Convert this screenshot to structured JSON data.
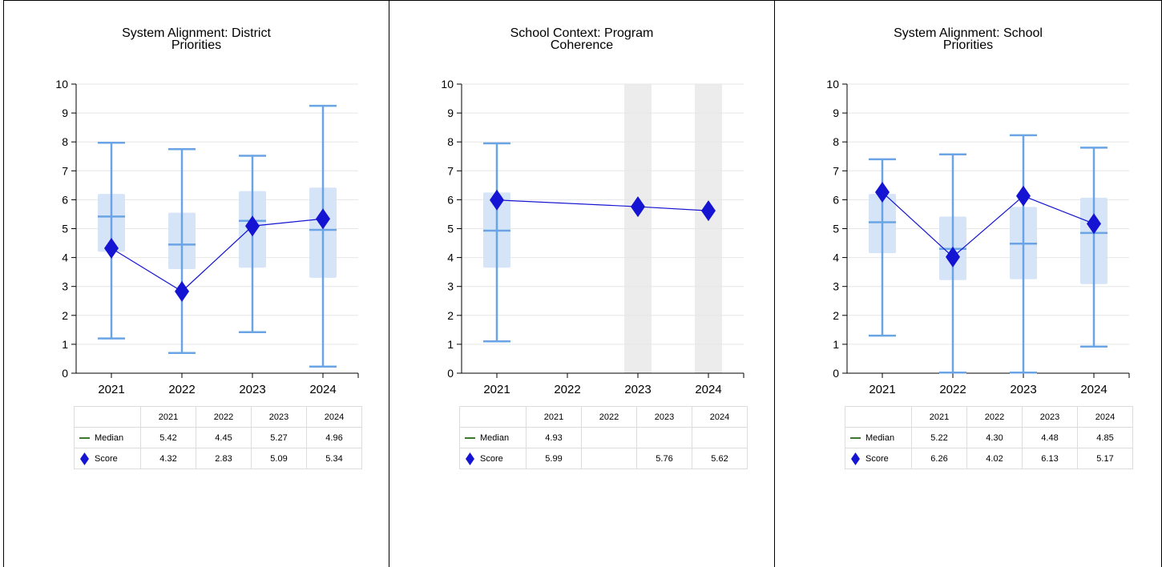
{
  "colors": {
    "box_fill": "#d6e4f8",
    "whisker": "#6aa4e4",
    "score": "#1414d2",
    "median_legend": "#3a7a2a",
    "highlight": "#ececec",
    "grid": "#e6e6e6"
  },
  "legend": {
    "median_label": "Median",
    "score_label": "Score"
  },
  "chart_data": [
    {
      "type": "box",
      "title_lines": [
        "System Alignment: District",
        "Priorities"
      ],
      "categories": [
        "2021",
        "2022",
        "2023",
        "2024"
      ],
      "ylim": [
        0,
        10
      ],
      "yticks": [
        "0",
        "1",
        "2",
        "3",
        "4",
        "5",
        "6",
        "7",
        "8",
        "9",
        "10"
      ],
      "highlight": [
        false,
        false,
        false,
        false
      ],
      "boxes": [
        {
          "min": 1.2,
          "q1": 4.2,
          "median": 5.42,
          "q3": 6.2,
          "max": 7.97
        },
        {
          "min": 0.7,
          "q1": 3.6,
          "median": 4.45,
          "q3": 5.55,
          "max": 7.75
        },
        {
          "min": 1.42,
          "q1": 3.65,
          "median": 5.27,
          "q3": 6.3,
          "max": 7.52
        },
        {
          "min": 0.23,
          "q1": 3.3,
          "median": 4.96,
          "q3": 6.42,
          "max": 9.25
        }
      ],
      "scores": [
        4.32,
        2.83,
        5.09,
        5.34
      ],
      "table": {
        "headers": [
          "2021",
          "2022",
          "2023",
          "2024"
        ],
        "median": [
          "5.42",
          "4.45",
          "5.27",
          "4.96"
        ],
        "score": [
          "4.32",
          "2.83",
          "5.09",
          "5.34"
        ]
      }
    },
    {
      "type": "box",
      "title_lines": [
        "School Context: Program",
        "Coherence"
      ],
      "categories": [
        "2021",
        "2022",
        "2023",
        "2024"
      ],
      "ylim": [
        0,
        10
      ],
      "yticks": [
        "0",
        "1",
        "2",
        "3",
        "4",
        "5",
        "6",
        "7",
        "8",
        "9",
        "10"
      ],
      "highlight": [
        false,
        false,
        true,
        true
      ],
      "boxes": [
        {
          "min": 1.1,
          "q1": 3.65,
          "median": 4.93,
          "q3": 6.25,
          "max": 7.95
        },
        null,
        null,
        null
      ],
      "scores": [
        5.99,
        null,
        5.76,
        5.62
      ],
      "table": {
        "headers": [
          "2021",
          "2022",
          "2023",
          "2024"
        ],
        "median": [
          "4.93",
          "",
          "",
          ""
        ],
        "score": [
          "5.99",
          "",
          "5.76",
          "5.62"
        ]
      }
    },
    {
      "type": "box",
      "title_lines": [
        "System Alignment: School",
        "Priorities"
      ],
      "categories": [
        "2021",
        "2022",
        "2023",
        "2024"
      ],
      "ylim": [
        0,
        10
      ],
      "yticks": [
        "0",
        "1",
        "2",
        "3",
        "4",
        "5",
        "6",
        "7",
        "8",
        "9",
        "10"
      ],
      "highlight": [
        false,
        false,
        false,
        false
      ],
      "boxes": [
        {
          "min": 1.3,
          "q1": 4.15,
          "median": 5.22,
          "q3": 6.2,
          "max": 7.4
        },
        {
          "min": 0.02,
          "q1": 3.22,
          "median": 4.3,
          "q3": 5.42,
          "max": 7.57
        },
        {
          "min": 0.02,
          "q1": 3.25,
          "median": 4.48,
          "q3": 5.75,
          "max": 8.23
        },
        {
          "min": 0.92,
          "q1": 3.08,
          "median": 4.85,
          "q3": 6.07,
          "max": 7.8
        }
      ],
      "scores": [
        6.26,
        4.02,
        6.13,
        5.17
      ],
      "table": {
        "headers": [
          "2021",
          "2022",
          "2023",
          "2024"
        ],
        "median": [
          "5.22",
          "4.30",
          "4.48",
          "4.85"
        ],
        "score": [
          "6.26",
          "4.02",
          "6.13",
          "5.17"
        ]
      }
    }
  ]
}
